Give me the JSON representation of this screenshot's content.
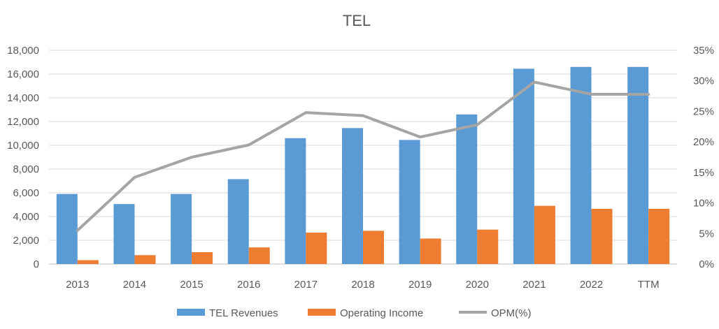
{
  "chart_data": {
    "type": "bar",
    "title": "TEL",
    "categories": [
      "2013",
      "2014",
      "2015",
      "2016",
      "2017",
      "2018",
      "2019",
      "2020",
      "2021",
      "2022",
      "TTM"
    ],
    "series": [
      {
        "name": "TEL Revenues",
        "type": "bar",
        "axis": "left",
        "color": "#5B9BD5",
        "values": [
          5900,
          5050,
          5900,
          7150,
          10600,
          11450,
          10450,
          12600,
          16450,
          16600,
          16600
        ]
      },
      {
        "name": "Operating Income",
        "type": "bar",
        "axis": "left",
        "color": "#ED7D31",
        "values": [
          330,
          750,
          1000,
          1400,
          2650,
          2800,
          2150,
          2900,
          4900,
          4650,
          4650
        ]
      },
      {
        "name": "OPM(%)",
        "type": "line",
        "axis": "right",
        "color": "#A5A5A5",
        "values": [
          5.5,
          14.2,
          17.5,
          19.5,
          24.8,
          24.3,
          20.8,
          22.8,
          29.8,
          27.8,
          27.8
        ]
      }
    ],
    "y_left": {
      "min": 0,
      "max": 18000,
      "ticks": [
        0,
        2000,
        4000,
        6000,
        8000,
        10000,
        12000,
        14000,
        16000,
        18000
      ],
      "tick_labels": [
        "0",
        "2,000",
        "4,000",
        "6,000",
        "8,000",
        "10,000",
        "12,000",
        "14,000",
        "16,000",
        "18,000"
      ]
    },
    "y_right": {
      "min": 0,
      "max": 35,
      "ticks": [
        0,
        5,
        10,
        15,
        20,
        25,
        30,
        35
      ],
      "tick_labels": [
        "0%",
        "5%",
        "10%",
        "15%",
        "20%",
        "25%",
        "30%",
        "35%"
      ]
    },
    "grid": true,
    "legend": "bottom"
  }
}
